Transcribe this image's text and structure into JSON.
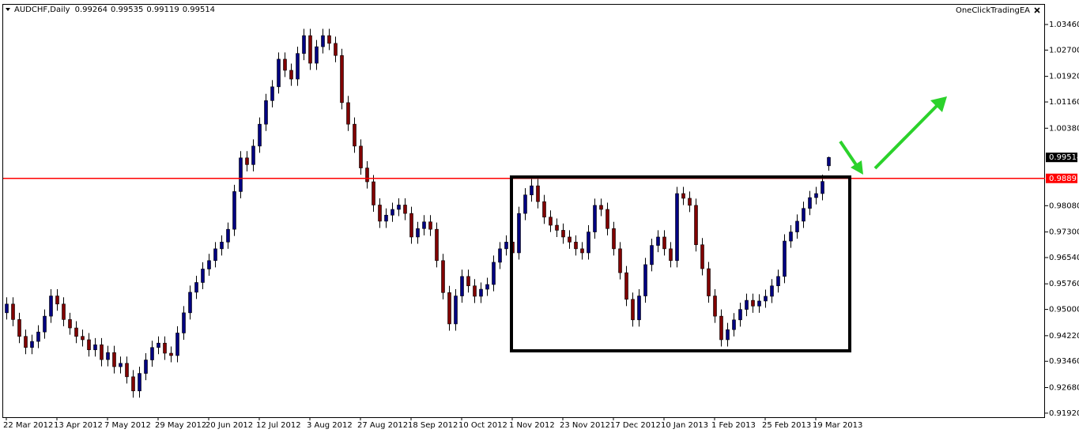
{
  "chart_data": {
    "type": "candlestick",
    "title": "AUDCHF,Daily",
    "indicator": "OneClickTradingEA",
    "up_color": "#000080",
    "down_color": "#800000",
    "ylim": [
      0.918,
      1.0407
    ],
    "yticks": [
      {
        "value": 1.0346,
        "label": "1.03460"
      },
      {
        "value": 1.027,
        "label": "1.02700"
      },
      {
        "value": 1.0192,
        "label": "1.01920"
      },
      {
        "value": 1.0116,
        "label": "1.01160"
      },
      {
        "value": 1.0038,
        "label": "1.00380"
      },
      {
        "value": 0.9808,
        "label": "0.98080"
      },
      {
        "value": 0.973,
        "label": "0.97300"
      },
      {
        "value": 0.9654,
        "label": "0.96540"
      },
      {
        "value": 0.9576,
        "label": "0.95760"
      },
      {
        "value": 0.95,
        "label": "0.95000"
      },
      {
        "value": 0.9422,
        "label": "0.94220"
      },
      {
        "value": 0.9346,
        "label": "0.93460"
      },
      {
        "value": 0.9268,
        "label": "0.92680"
      },
      {
        "value": 0.9192,
        "label": "0.91920"
      }
    ],
    "xticks": [
      {
        "value": 0,
        "label": "22 Mar 2012"
      },
      {
        "value": 8,
        "label": "13 Apr 2012"
      },
      {
        "value": 16,
        "label": "7 May 2012"
      },
      {
        "value": 24,
        "label": "29 May 2012"
      },
      {
        "value": 32,
        "label": "20 Jun 2012"
      },
      {
        "value": 40,
        "label": "12 Jul 2012"
      },
      {
        "value": 48,
        "label": "3 Aug 2012"
      },
      {
        "value": 56,
        "label": "27 Aug 2012"
      },
      {
        "value": 64,
        "label": "18 Sep 2012"
      },
      {
        "value": 72,
        "label": "10 Oct 2012"
      },
      {
        "value": 80,
        "label": "1 Nov 2012"
      },
      {
        "value": 88,
        "label": "23 Nov 2012"
      },
      {
        "value": 96,
        "label": "17 Dec 2012"
      },
      {
        "value": 104,
        "label": "10 Jan 2013"
      },
      {
        "value": 112,
        "label": "1 Feb 2013"
      },
      {
        "value": 120,
        "label": "25 Feb 2013"
      },
      {
        "value": 128,
        "label": "19 Mar 2013"
      }
    ],
    "level": {
      "value": 0.98891,
      "color": "#ff0000"
    },
    "candles": {
      "open": [
        0.949,
        0.9516,
        0.947,
        0.942,
        0.9387,
        0.9405,
        0.9433,
        0.948,
        0.954,
        0.9516,
        0.947,
        0.9445,
        0.942,
        0.941,
        0.938,
        0.9395,
        0.9351,
        0.9372,
        0.933,
        0.934,
        0.93,
        0.9258,
        0.931,
        0.935,
        0.9387,
        0.94,
        0.937,
        0.9363,
        0.943,
        0.949,
        0.9551,
        0.958,
        0.962,
        0.9645,
        0.968,
        0.97,
        0.9738,
        0.985,
        0.995,
        0.993,
        0.9985,
        1.005,
        1.012,
        1.0161,
        1.0243,
        1.021,
        1.0184,
        1.026,
        1.0313,
        1.0231,
        1.028,
        1.0313,
        1.029,
        1.0254,
        1.0114,
        1.005,
        0.9985,
        0.992,
        0.9879,
        0.981,
        0.9762,
        0.978,
        0.9797,
        0.981,
        0.9785,
        0.9715,
        0.974,
        0.976,
        0.9738,
        0.9645,
        0.955,
        0.9457,
        0.954,
        0.9598,
        0.957,
        0.9539,
        0.956,
        0.9574,
        0.964,
        0.968,
        0.97,
        0.9668,
        0.9785,
        0.984,
        0.9867,
        0.982,
        0.9774,
        0.975,
        0.9735,
        0.9715,
        0.97,
        0.968,
        0.9668,
        0.973,
        0.9809,
        0.9797,
        0.974,
        0.968,
        0.9609,
        0.953,
        0.9469,
        0.954,
        0.9633,
        0.969,
        0.9715,
        0.968,
        0.9645,
        0.9844,
        0.983,
        0.9809,
        0.9692,
        0.9621,
        0.954,
        0.948,
        0.941,
        0.944,
        0.9469,
        0.95,
        0.9527,
        0.951,
        0.9525,
        0.9539,
        0.957,
        0.9598,
        0.9703,
        0.973,
        0.9762,
        0.98,
        0.9832,
        0.9844,
        0.99264
      ],
      "high": [
        0.9536,
        0.9536,
        0.949,
        0.944,
        0.9425,
        0.9453,
        0.95,
        0.956,
        0.956,
        0.9536,
        0.949,
        0.9465,
        0.944,
        0.943,
        0.9415,
        0.9415,
        0.9392,
        0.9392,
        0.936,
        0.936,
        0.932,
        0.933,
        0.937,
        0.9407,
        0.942,
        0.942,
        0.939,
        0.945,
        0.951,
        0.9571,
        0.96,
        0.964,
        0.9665,
        0.97,
        0.972,
        0.9758,
        0.987,
        0.997,
        0.997,
        1.0005,
        1.007,
        1.014,
        1.0181,
        1.0263,
        1.0263,
        1.023,
        1.028,
        1.0333,
        1.0333,
        1.03,
        1.0333,
        1.0333,
        1.031,
        1.0274,
        1.0134,
        1.007,
        1.0005,
        0.994,
        0.9899,
        0.983,
        0.98,
        0.9817,
        0.983,
        0.983,
        0.9805,
        0.976,
        0.978,
        0.978,
        0.9758,
        0.9665,
        0.957,
        0.956,
        0.9618,
        0.9618,
        0.959,
        0.958,
        0.9594,
        0.966,
        0.97,
        0.972,
        0.972,
        0.9805,
        0.986,
        0.9887,
        0.9887,
        0.984,
        0.9794,
        0.977,
        0.9755,
        0.9735,
        0.972,
        0.97,
        0.975,
        0.9829,
        0.9829,
        0.9817,
        0.976,
        0.97,
        0.9629,
        0.955,
        0.956,
        0.9653,
        0.971,
        0.9735,
        0.9735,
        0.97,
        0.9864,
        0.9864,
        0.985,
        0.9829,
        0.9712,
        0.9641,
        0.956,
        0.95,
        0.946,
        0.9489,
        0.952,
        0.9547,
        0.9547,
        0.9545,
        0.9559,
        0.959,
        0.9618,
        0.9723,
        0.975,
        0.9782,
        0.982,
        0.9852,
        0.9864,
        0.99,
        0.99535
      ],
      "low": [
        0.947,
        0.945,
        0.94,
        0.9367,
        0.9367,
        0.9385,
        0.9413,
        0.946,
        0.9496,
        0.945,
        0.9425,
        0.94,
        0.939,
        0.936,
        0.936,
        0.9331,
        0.9331,
        0.931,
        0.931,
        0.928,
        0.9238,
        0.9238,
        0.929,
        0.933,
        0.9367,
        0.935,
        0.9343,
        0.9343,
        0.941,
        0.947,
        0.9531,
        0.956,
        0.96,
        0.9625,
        0.966,
        0.968,
        0.9718,
        0.983,
        0.991,
        0.991,
        0.9965,
        1.003,
        1.01,
        1.0141,
        1.019,
        1.0164,
        1.0164,
        1.024,
        1.0211,
        1.0211,
        1.026,
        1.027,
        1.0234,
        1.0094,
        1.003,
        0.9965,
        0.99,
        0.9859,
        0.979,
        0.9742,
        0.9742,
        0.976,
        0.9777,
        0.9765,
        0.9695,
        0.9695,
        0.972,
        0.9718,
        0.9625,
        0.953,
        0.9437,
        0.9437,
        0.952,
        0.955,
        0.9519,
        0.9519,
        0.954,
        0.9554,
        0.962,
        0.966,
        0.9648,
        0.9648,
        0.9765,
        0.982,
        0.98,
        0.9754,
        0.973,
        0.9715,
        0.9695,
        0.968,
        0.966,
        0.9648,
        0.9648,
        0.971,
        0.9777,
        0.972,
        0.966,
        0.9589,
        0.951,
        0.9449,
        0.9449,
        0.952,
        0.9613,
        0.967,
        0.966,
        0.9625,
        0.9625,
        0.981,
        0.9789,
        0.9672,
        0.9601,
        0.952,
        0.946,
        0.939,
        0.939,
        0.942,
        0.9449,
        0.948,
        0.949,
        0.949,
        0.9505,
        0.9519,
        0.955,
        0.9578,
        0.9683,
        0.971,
        0.9742,
        0.978,
        0.9812,
        0.9824,
        0.99119
      ],
      "close": [
        0.9516,
        0.947,
        0.942,
        0.9387,
        0.9405,
        0.9433,
        0.948,
        0.954,
        0.9516,
        0.947,
        0.9445,
        0.942,
        0.941,
        0.938,
        0.9395,
        0.9351,
        0.9372,
        0.933,
        0.934,
        0.93,
        0.9258,
        0.931,
        0.935,
        0.9387,
        0.94,
        0.937,
        0.9363,
        0.943,
        0.949,
        0.9551,
        0.958,
        0.962,
        0.9645,
        0.968,
        0.97,
        0.9738,
        0.985,
        0.995,
        0.993,
        0.9985,
        1.005,
        1.012,
        1.0161,
        1.0243,
        1.021,
        1.0184,
        1.026,
        1.0313,
        1.0231,
        1.028,
        1.0313,
        1.029,
        1.0254,
        1.0114,
        1.005,
        0.9985,
        0.992,
        0.9879,
        0.981,
        0.9762,
        0.978,
        0.9797,
        0.981,
        0.9785,
        0.9715,
        0.974,
        0.976,
        0.9738,
        0.9645,
        0.955,
        0.9457,
        0.954,
        0.9598,
        0.957,
        0.9539,
        0.956,
        0.9574,
        0.964,
        0.968,
        0.97,
        0.9668,
        0.9785,
        0.984,
        0.9867,
        0.982,
        0.9774,
        0.975,
        0.9735,
        0.9715,
        0.97,
        0.968,
        0.9668,
        0.973,
        0.9809,
        0.9797,
        0.974,
        0.968,
        0.9609,
        0.953,
        0.9469,
        0.954,
        0.9633,
        0.969,
        0.9715,
        0.968,
        0.9645,
        0.9844,
        0.983,
        0.9809,
        0.9692,
        0.9621,
        0.954,
        0.948,
        0.941,
        0.944,
        0.9469,
        0.95,
        0.9527,
        0.951,
        0.9525,
        0.9539,
        0.957,
        0.9598,
        0.9703,
        0.973,
        0.9762,
        0.98,
        0.9832,
        0.9844,
        0.988,
        0.99514
      ]
    }
  }
}
